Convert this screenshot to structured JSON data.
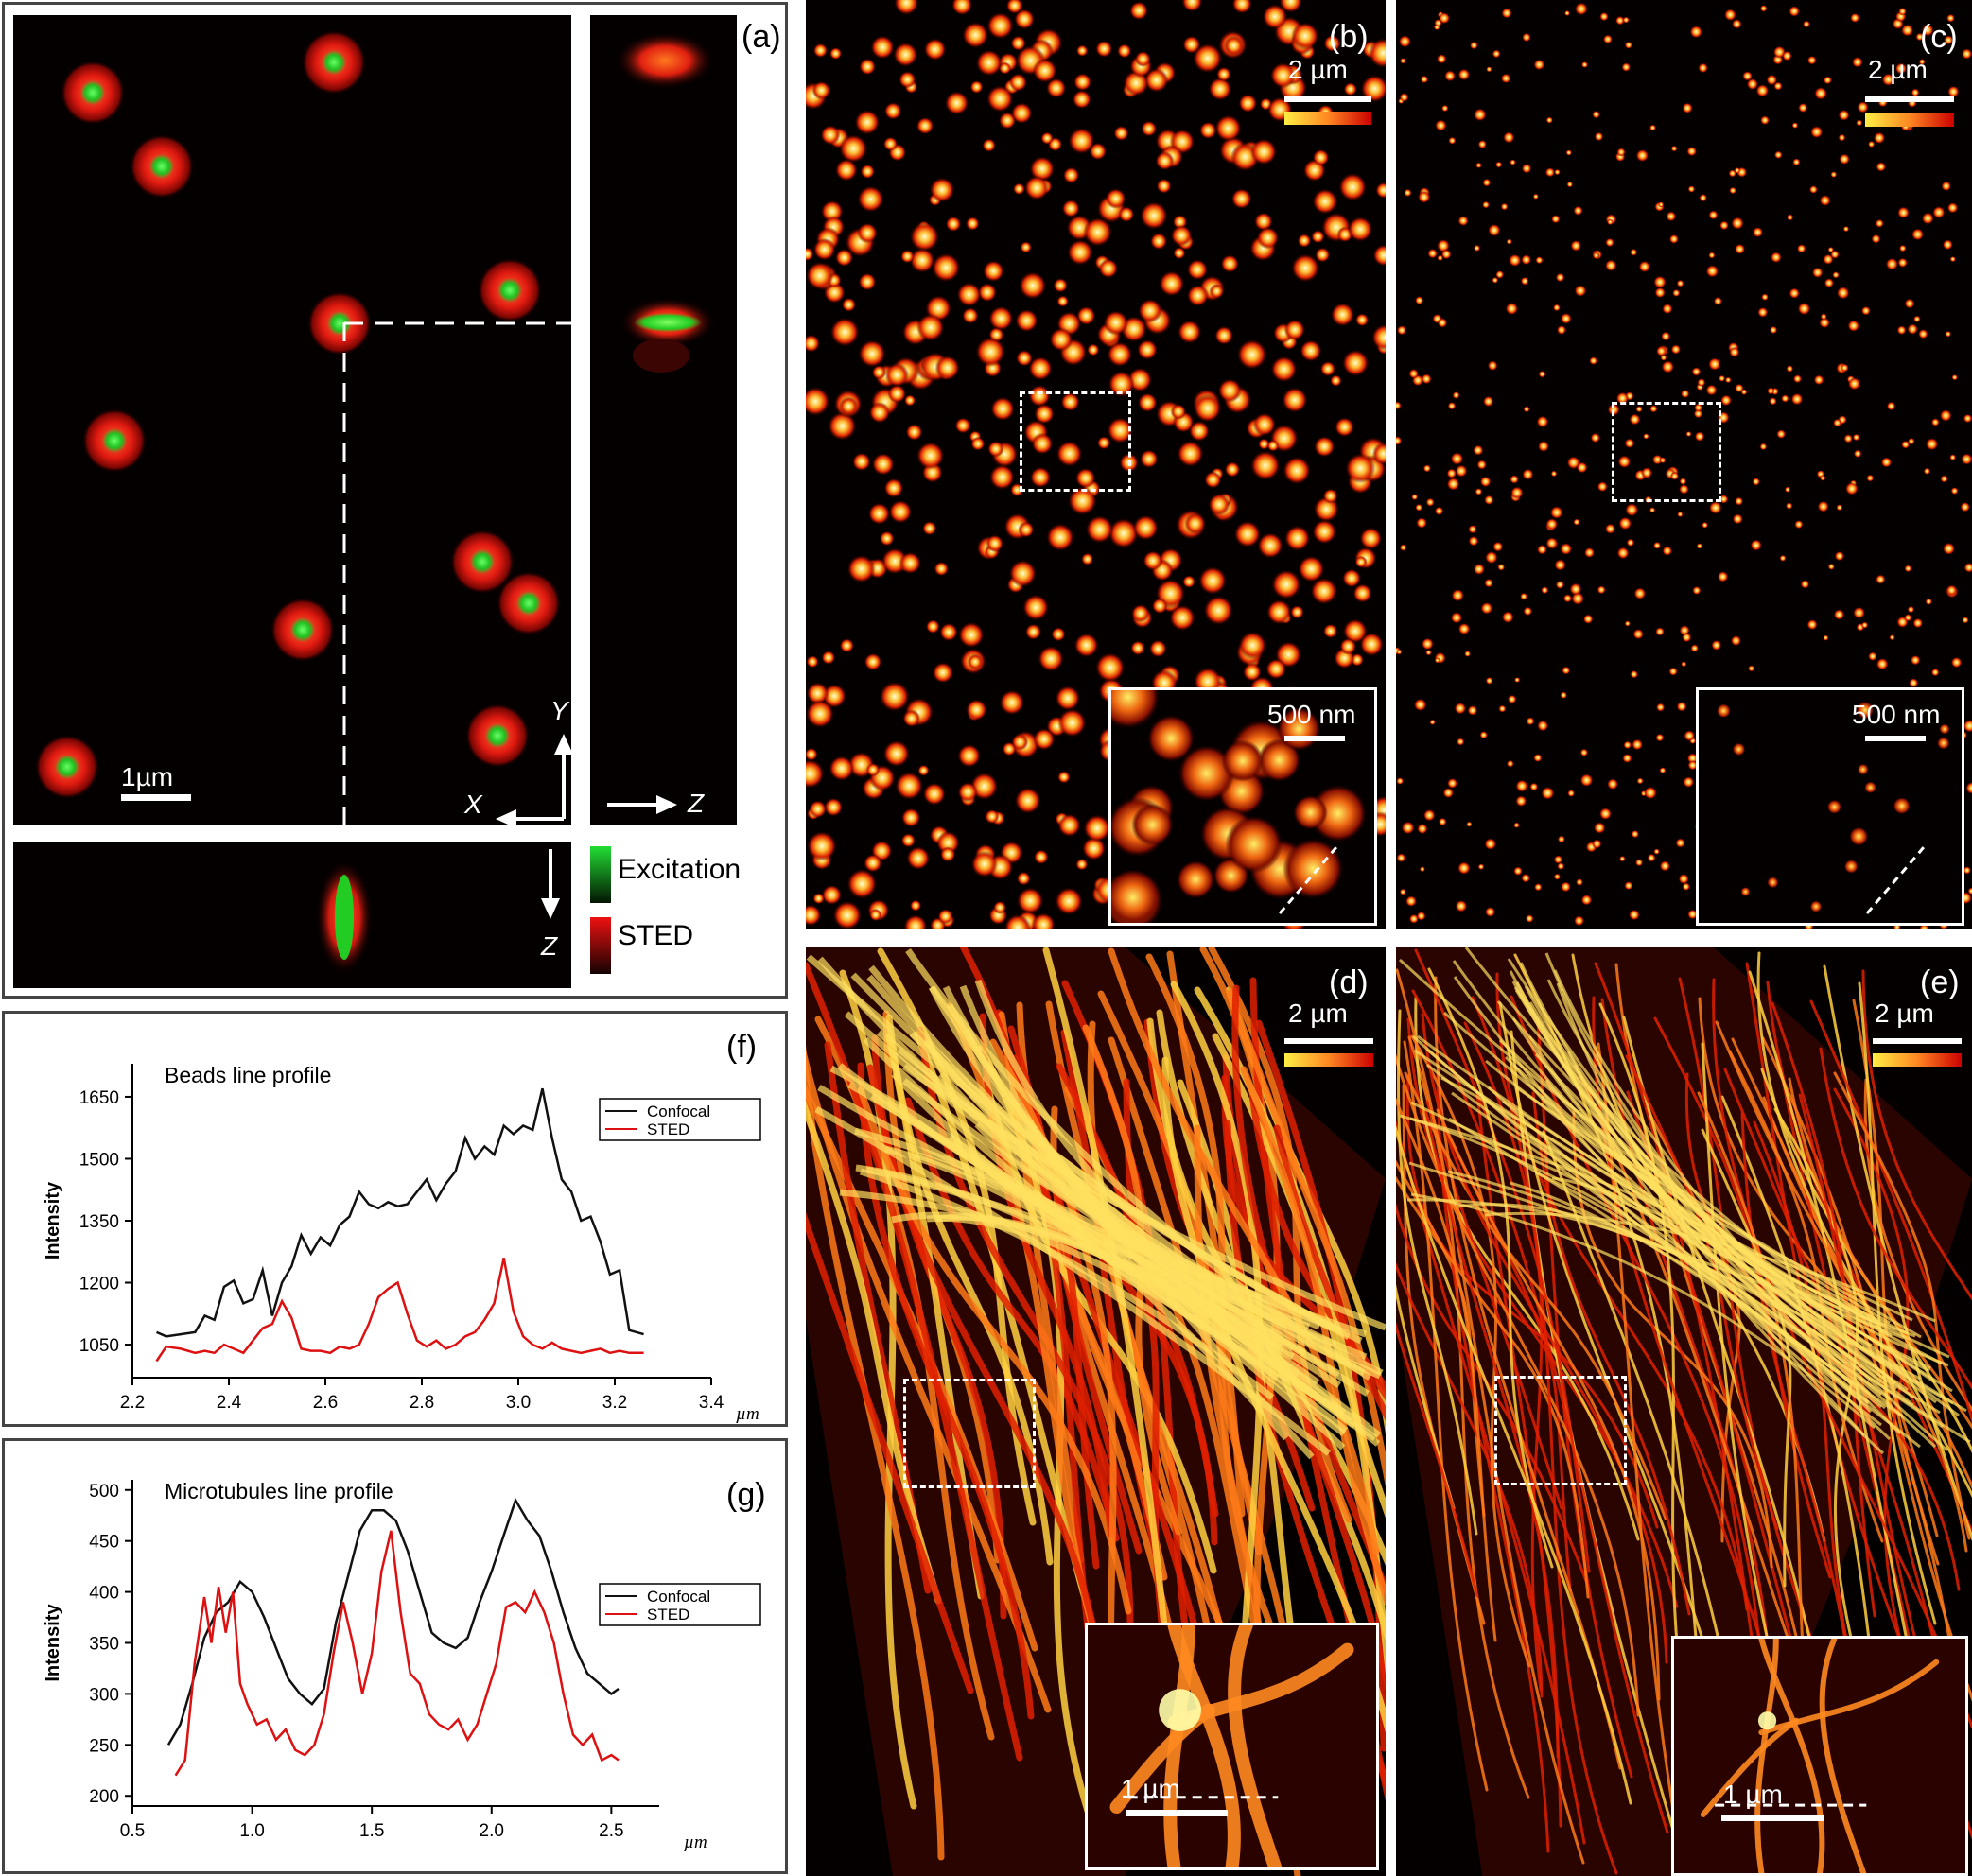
{
  "panels": {
    "a": {
      "label": "(a)",
      "scalebar": "1µm",
      "axis_x": "X",
      "axis_y": "Y",
      "axis_z_side": "Z",
      "axis_z_bottom": "Z",
      "legend": [
        {
          "label": "Excitation",
          "color": "#22dd33"
        },
        {
          "label": "STED",
          "color": "#ee1111"
        }
      ]
    },
    "b": {
      "label": "(b)",
      "scalebar": "2 µm",
      "inset_scalebar": "500 nm"
    },
    "c": {
      "label": "(c)",
      "scalebar": "2 µm",
      "inset_scalebar": "500 nm"
    },
    "d": {
      "label": "(d)",
      "scalebar": "2 µm",
      "inset_scalebar": "1 µm"
    },
    "e": {
      "label": "(e)",
      "scalebar": "2 µm",
      "inset_scalebar": "1 µm"
    },
    "f": {
      "label": "(f)"
    },
    "g": {
      "label": "(g)"
    }
  },
  "chart_data": [
    {
      "type": "line",
      "title": "Beads line profile",
      "xlabel": "µm",
      "ylabel": "Intensity",
      "xlim": [
        2.2,
        3.4
      ],
      "ylim": [
        970,
        1730
      ],
      "xticks": [
        "2.2",
        "2.4",
        "2.6",
        "2.8",
        "3.0",
        "3.2",
        "3.4"
      ],
      "yticks": [
        "1050",
        "1200",
        "1350",
        "1500",
        "1650"
      ],
      "legend": "top-right",
      "colors": {
        "Confocal": "#111111",
        "STED": "#dd1111"
      },
      "series": [
        {
          "name": "Confocal",
          "x": [
            2.25,
            2.27,
            2.3,
            2.33,
            2.35,
            2.37,
            2.39,
            2.41,
            2.43,
            2.45,
            2.47,
            2.49,
            2.51,
            2.53,
            2.55,
            2.57,
            2.59,
            2.61,
            2.63,
            2.65,
            2.67,
            2.69,
            2.71,
            2.73,
            2.75,
            2.77,
            2.79,
            2.81,
            2.83,
            2.85,
            2.87,
            2.89,
            2.91,
            2.93,
            2.95,
            2.97,
            2.99,
            3.01,
            3.03,
            3.05,
            3.07,
            3.09,
            3.11,
            3.13,
            3.15,
            3.17,
            3.19,
            3.21,
            3.23,
            3.26
          ],
          "y": [
            1080,
            1070,
            1075,
            1080,
            1120,
            1110,
            1190,
            1205,
            1150,
            1160,
            1230,
            1120,
            1200,
            1240,
            1315,
            1270,
            1310,
            1290,
            1340,
            1360,
            1420,
            1390,
            1380,
            1395,
            1385,
            1390,
            1420,
            1450,
            1400,
            1440,
            1470,
            1550,
            1500,
            1530,
            1510,
            1580,
            1560,
            1580,
            1570,
            1670,
            1550,
            1450,
            1420,
            1350,
            1360,
            1300,
            1220,
            1230,
            1085,
            1075
          ]
        },
        {
          "name": "STED",
          "x": [
            2.25,
            2.27,
            2.3,
            2.33,
            2.35,
            2.37,
            2.39,
            2.41,
            2.43,
            2.45,
            2.47,
            2.49,
            2.51,
            2.53,
            2.55,
            2.57,
            2.59,
            2.61,
            2.63,
            2.65,
            2.67,
            2.69,
            2.71,
            2.73,
            2.75,
            2.77,
            2.79,
            2.81,
            2.83,
            2.85,
            2.87,
            2.89,
            2.91,
            2.93,
            2.95,
            2.97,
            2.99,
            3.01,
            3.03,
            3.05,
            3.07,
            3.09,
            3.11,
            3.13,
            3.15,
            3.17,
            3.19,
            3.21,
            3.23,
            3.26
          ],
          "y": [
            1010,
            1045,
            1040,
            1030,
            1035,
            1030,
            1050,
            1040,
            1030,
            1060,
            1090,
            1100,
            1155,
            1115,
            1040,
            1035,
            1035,
            1030,
            1045,
            1040,
            1050,
            1100,
            1165,
            1185,
            1200,
            1125,
            1060,
            1045,
            1060,
            1040,
            1050,
            1070,
            1080,
            1110,
            1150,
            1260,
            1130,
            1070,
            1050,
            1040,
            1055,
            1040,
            1035,
            1030,
            1035,
            1040,
            1030,
            1035,
            1030,
            1030
          ]
        }
      ]
    },
    {
      "type": "line",
      "title": "Microtubules line profile",
      "xlabel": "µm",
      "ylabel": "Intensity",
      "xlim": [
        0.5,
        2.7
      ],
      "ylim": [
        190,
        510
      ],
      "xticks": [
        "0.5",
        "1.0",
        "1.5",
        "2.0",
        "2.5"
      ],
      "yticks": [
        "200",
        "250",
        "300",
        "350",
        "400",
        "450",
        "500"
      ],
      "legend": "top-right",
      "colors": {
        "Confocal": "#111111",
        "STED": "#dd1111"
      },
      "series": [
        {
          "name": "Confocal",
          "x": [
            0.65,
            0.7,
            0.75,
            0.8,
            0.85,
            0.9,
            0.95,
            1.0,
            1.05,
            1.1,
            1.15,
            1.2,
            1.25,
            1.3,
            1.35,
            1.4,
            1.45,
            1.5,
            1.55,
            1.6,
            1.65,
            1.7,
            1.75,
            1.8,
            1.85,
            1.9,
            1.95,
            2.0,
            2.05,
            2.1,
            2.15,
            2.2,
            2.25,
            2.3,
            2.35,
            2.4,
            2.45,
            2.5,
            2.53
          ],
          "y": [
            250,
            270,
            310,
            355,
            380,
            390,
            410,
            400,
            375,
            345,
            315,
            300,
            290,
            305,
            370,
            415,
            460,
            480,
            480,
            470,
            440,
            400,
            360,
            350,
            345,
            355,
            390,
            420,
            455,
            490,
            470,
            455,
            420,
            380,
            345,
            320,
            310,
            300,
            305
          ]
        },
        {
          "name": "STED",
          "x": [
            0.68,
            0.72,
            0.76,
            0.8,
            0.83,
            0.86,
            0.89,
            0.92,
            0.95,
            0.98,
            1.02,
            1.06,
            1.1,
            1.14,
            1.18,
            1.22,
            1.26,
            1.3,
            1.34,
            1.38,
            1.42,
            1.46,
            1.5,
            1.54,
            1.58,
            1.62,
            1.66,
            1.7,
            1.74,
            1.78,
            1.82,
            1.86,
            1.9,
            1.94,
            1.98,
            2.02,
            2.06,
            2.1,
            2.14,
            2.18,
            2.22,
            2.26,
            2.3,
            2.34,
            2.38,
            2.42,
            2.46,
            2.5,
            2.53
          ],
          "y": [
            220,
            235,
            330,
            395,
            350,
            405,
            360,
            400,
            310,
            290,
            270,
            275,
            255,
            265,
            245,
            240,
            250,
            280,
            340,
            390,
            350,
            300,
            340,
            420,
            460,
            380,
            320,
            310,
            280,
            270,
            265,
            275,
            255,
            270,
            300,
            330,
            385,
            390,
            380,
            400,
            380,
            350,
            300,
            260,
            250,
            260,
            235,
            240,
            235
          ]
        }
      ]
    }
  ]
}
